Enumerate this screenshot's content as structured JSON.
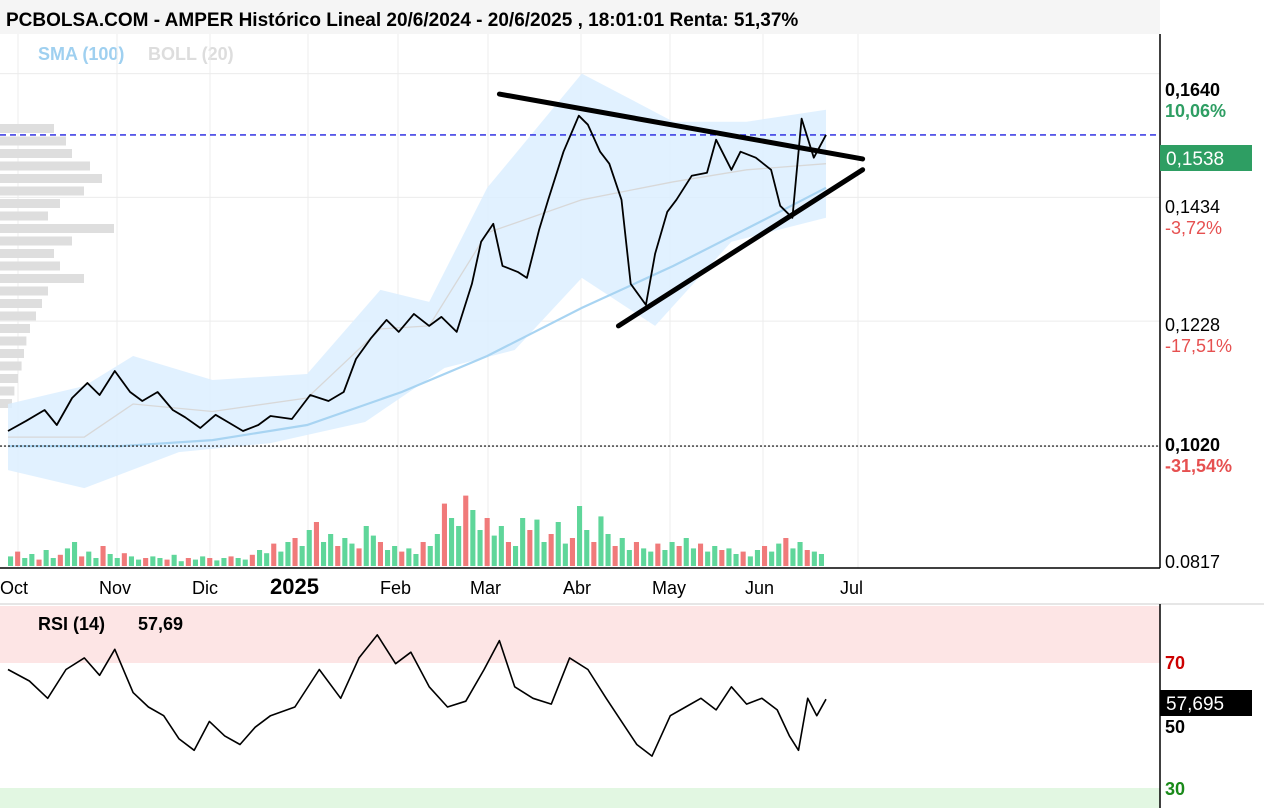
{
  "header": {
    "title": "PCBOLSA.COM - AMPER Histórico Lineal 20/6/2024 - 20/6/2025 , 18:01:01 Renta: 51,37%"
  },
  "legend": {
    "sma_label": "SMA (100)",
    "boll_label": "BOLL (20)"
  },
  "colors": {
    "price": "#000000",
    "sma": "#a8d4f2",
    "boll_band": "#dcefff",
    "vol_up": "#5fd69a",
    "vol_down": "#f07a7a",
    "current_box": "#2e9e63",
    "overbought_zone": "#fde5e5",
    "oversold_zone": "#e2f7e2"
  },
  "price_axis": {
    "levels": [
      {
        "value": "0,1640",
        "pct": "10,06%"
      },
      {
        "value": "0,1434",
        "pct": "-3,72%"
      },
      {
        "value": "0,1228",
        "pct": "-17,51%"
      },
      {
        "value": "0,1020",
        "pct": "-31,54%"
      },
      {
        "value": "0.0817",
        "pct": ""
      }
    ],
    "current_value": "0,1538"
  },
  "time_axis": {
    "labels": [
      "Oct",
      "Nov",
      "Dic",
      "2025",
      "Feb",
      "Mar",
      "Abr",
      "May",
      "Jun",
      "Jul"
    ]
  },
  "rsi": {
    "label": "RSI (14)",
    "value": "57,69",
    "current_value": "57,695",
    "levels": [
      "70",
      "50",
      "30"
    ]
  },
  "chart_data": {
    "type": "line",
    "title": "PCBOLSA.COM - AMPER Histórico Lineal 20/6/2024 - 20/6/2025 , 18:01:01 Renta: 51,37%",
    "x_range": [
      "2024-09-25",
      "2025-06-20"
    ],
    "ylim": [
      0.0817,
      0.1706
    ],
    "price_series": {
      "name": "AMPER",
      "points": [
        [
          "2024-09-25",
          0.1045
        ],
        [
          "2024-10-01",
          0.1062
        ],
        [
          "2024-10-07",
          0.108
        ],
        [
          "2024-10-11",
          0.1055
        ],
        [
          "2024-10-16",
          0.11
        ],
        [
          "2024-10-21",
          0.1125
        ],
        [
          "2024-10-25",
          0.1105
        ],
        [
          "2024-10-30",
          0.1145
        ],
        [
          "2024-11-04",
          0.111
        ],
        [
          "2024-11-08",
          0.1095
        ],
        [
          "2024-11-13",
          0.111
        ],
        [
          "2024-11-18",
          0.108
        ],
        [
          "2024-11-22",
          0.1068
        ],
        [
          "2024-11-27",
          0.105
        ],
        [
          "2024-12-02",
          0.1072
        ],
        [
          "2024-12-06",
          0.106
        ],
        [
          "2024-12-11",
          0.1045
        ],
        [
          "2024-12-16",
          0.1055
        ],
        [
          "2024-12-20",
          0.107
        ],
        [
          "2024-12-27",
          0.1065
        ],
        [
          "2025-01-02",
          0.1105
        ],
        [
          "2025-01-08",
          0.1095
        ],
        [
          "2025-01-13",
          0.111
        ],
        [
          "2025-01-17",
          0.1165
        ],
        [
          "2025-01-22",
          0.12
        ],
        [
          "2025-01-27",
          0.123
        ],
        [
          "2025-01-31",
          0.121
        ],
        [
          "2025-02-05",
          0.124
        ],
        [
          "2025-02-10",
          0.122
        ],
        [
          "2025-02-14",
          0.1235
        ],
        [
          "2025-02-19",
          0.121
        ],
        [
          "2025-02-24",
          0.129
        ],
        [
          "2025-02-27",
          0.136
        ],
        [
          "2025-03-03",
          0.139
        ],
        [
          "2025-03-06",
          0.132
        ],
        [
          "2025-03-11",
          0.131
        ],
        [
          "2025-03-14",
          0.13
        ],
        [
          "2025-03-18",
          0.138
        ],
        [
          "2025-03-21",
          0.143
        ],
        [
          "2025-03-26",
          0.151
        ],
        [
          "2025-03-31",
          0.157
        ],
        [
          "2025-04-03",
          0.1555
        ],
        [
          "2025-04-07",
          0.151
        ],
        [
          "2025-04-10",
          0.149
        ],
        [
          "2025-04-14",
          0.143
        ],
        [
          "2025-04-17",
          0.129
        ],
        [
          "2025-04-22",
          0.1255
        ],
        [
          "2025-04-25",
          0.134
        ],
        [
          "2025-04-29",
          0.141
        ],
        [
          "2025-05-02",
          0.143
        ],
        [
          "2025-05-07",
          0.147
        ],
        [
          "2025-05-12",
          0.1475
        ],
        [
          "2025-05-15",
          0.153
        ],
        [
          "2025-05-20",
          0.148
        ],
        [
          "2025-05-23",
          0.151
        ],
        [
          "2025-05-28",
          0.15
        ],
        [
          "2025-06-02",
          0.148
        ],
        [
          "2025-06-05",
          0.142
        ],
        [
          "2025-06-09",
          0.14
        ],
        [
          "2025-06-12",
          0.1565
        ],
        [
          "2025-06-16",
          0.15
        ],
        [
          "2025-06-20",
          0.1538
        ]
      ]
    },
    "sma_series": {
      "name": "SMA (100)",
      "points": [
        [
          "2024-09-25",
          0.102
        ],
        [
          "2024-11-01",
          0.102
        ],
        [
          "2024-12-01",
          0.103
        ],
        [
          "2025-01-01",
          0.1055
        ],
        [
          "2025-02-01",
          0.111
        ],
        [
          "2025-03-01",
          0.117
        ],
        [
          "2025-04-01",
          0.125
        ],
        [
          "2025-05-01",
          0.132
        ],
        [
          "2025-06-01",
          0.14
        ],
        [
          "2025-06-20",
          0.145
        ]
      ]
    },
    "boll_band": {
      "name": "BOLL (20)",
      "upper": [
        [
          "2024-09-25",
          0.109
        ],
        [
          "2024-10-20",
          0.112
        ],
        [
          "2024-11-05",
          0.117
        ],
        [
          "2024-12-01",
          0.113
        ],
        [
          "2025-01-01",
          0.114
        ],
        [
          "2025-01-25",
          0.128
        ],
        [
          "2025-02-10",
          0.126
        ],
        [
          "2025-03-01",
          0.145
        ],
        [
          "2025-04-01",
          0.164
        ],
        [
          "2025-05-01",
          0.156
        ],
        [
          "2025-05-25",
          0.156
        ],
        [
          "2025-06-20",
          0.158
        ]
      ],
      "lower": [
        [
          "2024-09-25",
          0.098
        ],
        [
          "2024-10-20",
          0.095
        ],
        [
          "2024-11-20",
          0.101
        ],
        [
          "2024-12-20",
          0.1025
        ],
        [
          "2025-01-20",
          0.106
        ],
        [
          "2025-02-15",
          0.115
        ],
        [
          "2025-03-10",
          0.118
        ],
        [
          "2025-04-01",
          0.13
        ],
        [
          "2025-04-25",
          0.122
        ],
        [
          "2025-05-20",
          0.136
        ],
        [
          "2025-06-20",
          0.14
        ]
      ]
    },
    "triangle_lines": [
      {
        "from": [
          "2025-03-05",
          0.1606
        ],
        "to": [
          "2025-07-02",
          0.1498
        ]
      },
      {
        "from": [
          "2025-04-13",
          0.122
        ],
        "to": [
          "2025-07-02",
          0.148
        ]
      }
    ],
    "reference_lines": [
      {
        "value": 0.1538,
        "style": "dashed",
        "color": "#2020e0"
      },
      {
        "value": 0.102,
        "style": "dotted",
        "color": "#333333"
      }
    ],
    "volume_max": 1.0,
    "volume": [
      0.12,
      0.18,
      0.1,
      0.15,
      0.08,
      0.2,
      0.1,
      0.14,
      0.22,
      0.3,
      0.12,
      0.18,
      0.1,
      0.25,
      0.15,
      0.1,
      0.16,
      0.12,
      0.08,
      0.1,
      0.12,
      0.1,
      0.08,
      0.14,
      0.06,
      0.1,
      0.08,
      0.12,
      0.1,
      0.07,
      0.1,
      0.12,
      0.1,
      0.08,
      0.14,
      0.2,
      0.16,
      0.28,
      0.18,
      0.3,
      0.35,
      0.25,
      0.45,
      0.55,
      0.3,
      0.4,
      0.25,
      0.35,
      0.28,
      0.22,
      0.5,
      0.38,
      0.3,
      0.2,
      0.25,
      0.18,
      0.22,
      0.15,
      0.3,
      0.25,
      0.4,
      0.78,
      0.6,
      0.5,
      0.88,
      0.7,
      0.45,
      0.6,
      0.38,
      0.5,
      0.3,
      0.25,
      0.6,
      0.45,
      0.58,
      0.3,
      0.4,
      0.55,
      0.28,
      0.35,
      0.75,
      0.45,
      0.3,
      0.62,
      0.4,
      0.25,
      0.35,
      0.2,
      0.3,
      0.22,
      0.18,
      0.28,
      0.2,
      0.3,
      0.25,
      0.35,
      0.22,
      0.28,
      0.18,
      0.25,
      0.2,
      0.22,
      0.15,
      0.18,
      0.12,
      0.2,
      0.25,
      0.18,
      0.28,
      0.35,
      0.22,
      0.3,
      0.2,
      0.18,
      0.15
    ],
    "rsi_ylim": [
      20,
      90
    ],
    "rsi_series": {
      "name": "RSI (14)",
      "points": [
        [
          "2024-09-25",
          68
        ],
        [
          "2024-10-02",
          64
        ],
        [
          "2024-10-08",
          58
        ],
        [
          "2024-10-14",
          68
        ],
        [
          "2024-10-20",
          72
        ],
        [
          "2024-10-25",
          66
        ],
        [
          "2024-10-30",
          75
        ],
        [
          "2024-11-05",
          60
        ],
        [
          "2024-11-10",
          55
        ],
        [
          "2024-11-15",
          52
        ],
        [
          "2024-11-20",
          44
        ],
        [
          "2024-11-25",
          40
        ],
        [
          "2024-11-30",
          50
        ],
        [
          "2024-12-05",
          45
        ],
        [
          "2024-12-10",
          42
        ],
        [
          "2024-12-15",
          48
        ],
        [
          "2024-12-20",
          52
        ],
        [
          "2024-12-28",
          55
        ],
        [
          "2025-01-05",
          68
        ],
        [
          "2025-01-12",
          58
        ],
        [
          "2025-01-18",
          72
        ],
        [
          "2025-01-24",
          80
        ],
        [
          "2025-01-30",
          70
        ],
        [
          "2025-02-04",
          74
        ],
        [
          "2025-02-10",
          62
        ],
        [
          "2025-02-16",
          55
        ],
        [
          "2025-02-22",
          57
        ],
        [
          "2025-02-28",
          68
        ],
        [
          "2025-03-05",
          78
        ],
        [
          "2025-03-10",
          62
        ],
        [
          "2025-03-16",
          58
        ],
        [
          "2025-03-22",
          56
        ],
        [
          "2025-03-28",
          72
        ],
        [
          "2025-04-03",
          68
        ],
        [
          "2025-04-09",
          58
        ],
        [
          "2025-04-14",
          50
        ],
        [
          "2025-04-19",
          42
        ],
        [
          "2025-04-24",
          38
        ],
        [
          "2025-04-30",
          52
        ],
        [
          "2025-05-05",
          55
        ],
        [
          "2025-05-10",
          58
        ],
        [
          "2025-05-15",
          54
        ],
        [
          "2025-05-20",
          62
        ],
        [
          "2025-05-25",
          56
        ],
        [
          "2025-05-30",
          58
        ],
        [
          "2025-06-04",
          54
        ],
        [
          "2025-06-08",
          45
        ],
        [
          "2025-06-11",
          40
        ],
        [
          "2025-06-14",
          58
        ],
        [
          "2025-06-17",
          52
        ],
        [
          "2025-06-20",
          57.69
        ]
      ]
    },
    "volume_profile_sample": [
      0.45,
      0.55,
      0.6,
      0.75,
      0.85,
      0.7,
      0.5,
      0.4,
      0.95,
      0.6,
      0.45,
      0.5,
      0.7,
      0.4,
      0.35,
      0.3,
      0.25,
      0.22,
      0.2,
      0.18,
      0.15,
      0.12,
      0.1
    ]
  }
}
